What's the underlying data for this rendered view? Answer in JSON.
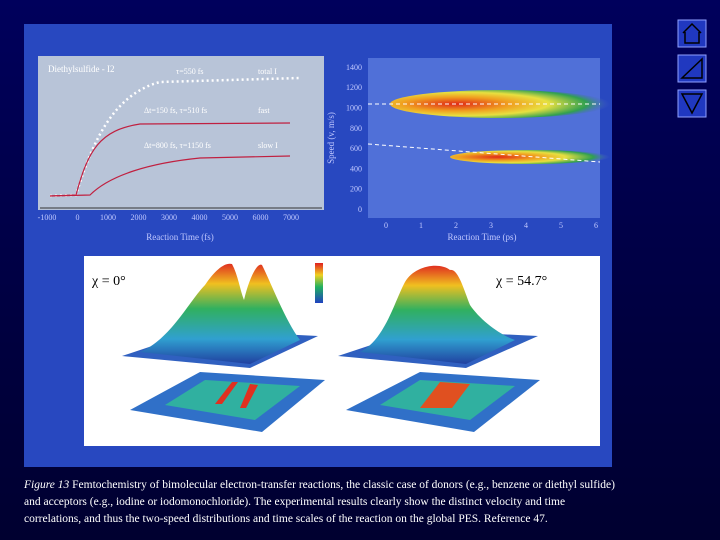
{
  "figure": {
    "left_panel": {
      "title": "Diethylsulfide - I2",
      "labels": [
        "τ=550 fs",
        "total I",
        "Δt=150 fs, τ=510 fs",
        "fast",
        "Δt=800 fs, τ=1150 fs",
        "slow I"
      ],
      "x_label": "Reaction Time (fs)",
      "x_ticks": [
        "-1000",
        "0",
        "1000",
        "2000",
        "3000",
        "4000",
        "5000",
        "6000",
        "7000"
      ]
    },
    "right_panel": {
      "y_label": "Speed (v, m/s)",
      "y_ticks": [
        "0",
        "200",
        "400",
        "600",
        "800",
        "1000",
        "1200",
        "1400"
      ],
      "x_label": "Reaction Time (ps)",
      "x_ticks": [
        "0",
        "1",
        "2",
        "3",
        "4",
        "5",
        "6"
      ]
    },
    "bottom_panel": {
      "left_angle": "χ = 0°",
      "right_angle": "χ = 54.7°"
    }
  },
  "caption": {
    "label": "Figure 13",
    "text": "Femtochemistry of bimolecular electron-transfer reactions, the classic case of donors (e.g., benzene or diethyl sulfide) and acceptors (e.g., iodine or iodomonochloride). The experimental results clearly show the distinct velocity and time correlations, and thus the two-speed distributions and time scales of the reaction on the global PES. Reference 47."
  }
}
